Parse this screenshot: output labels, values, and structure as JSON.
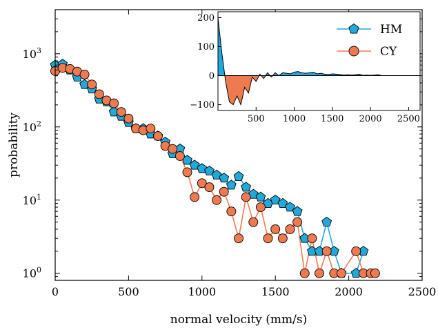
{
  "chart_data": [
    {
      "type": "line",
      "xlabel": "normal velocity (mm/s)",
      "ylabel": "probability",
      "xlim": [
        0,
        2500
      ],
      "ylim": [
        0.8,
        4000
      ],
      "yscale": "log",
      "xticks": [
        {
          "value": 0,
          "label": "0"
        },
        {
          "value": 500,
          "label": "500"
        },
        {
          "value": 1000,
          "label": "1000"
        },
        {
          "value": 1500,
          "label": "1500"
        },
        {
          "value": 2000,
          "label": "2000"
        },
        {
          "value": 2500,
          "label": "2500"
        }
      ],
      "yticks": [
        {
          "value": 1,
          "base": "10",
          "exp": "0"
        },
        {
          "value": 10,
          "base": "10",
          "exp": "1"
        },
        {
          "value": 100,
          "base": "10",
          "exp": "2"
        },
        {
          "value": 1000,
          "base": "10",
          "exp": "3"
        }
      ],
      "grid": false,
      "legend_position": "inset top-right",
      "series": [
        {
          "name": "HM",
          "color": "#1fa9dc",
          "marker": "pentagon",
          "x": [
            0,
            50,
            100,
            150,
            200,
            250,
            300,
            350,
            400,
            450,
            500,
            550,
            600,
            650,
            700,
            750,
            800,
            850,
            900,
            950,
            1000,
            1050,
            1100,
            1150,
            1200,
            1250,
            1300,
            1350,
            1400,
            1450,
            1500,
            1550,
            1600,
            1650,
            1700,
            1750,
            1800,
            1850,
            1900,
            1950,
            2050,
            2100
          ],
          "y": [
            700,
            720,
            600,
            480,
            380,
            330,
            240,
            220,
            160,
            140,
            115,
            95,
            95,
            80,
            75,
            62,
            43,
            50,
            35,
            30,
            27,
            25,
            22,
            20,
            16,
            21,
            15,
            12,
            11,
            9,
            10,
            9,
            8,
            7,
            3,
            2,
            2,
            5,
            2,
            1,
            1,
            2
          ]
        },
        {
          "name": "CY",
          "color": "#f07a4f",
          "marker": "circle",
          "x": [
            0,
            50,
            100,
            150,
            200,
            250,
            300,
            350,
            400,
            450,
            500,
            550,
            600,
            650,
            700,
            750,
            800,
            850,
            900,
            950,
            1000,
            1050,
            1100,
            1150,
            1200,
            1250,
            1300,
            1350,
            1400,
            1450,
            1500,
            1550,
            1600,
            1650,
            1700,
            1750,
            1800,
            1850,
            1900,
            1950,
            2050,
            2100,
            2150,
            2180
          ],
          "y": [
            580,
            640,
            620,
            570,
            520,
            380,
            280,
            230,
            210,
            160,
            130,
            95,
            90,
            95,
            75,
            55,
            50,
            40,
            24,
            11,
            17,
            15,
            10,
            13,
            7,
            3,
            11,
            5,
            8,
            3,
            4,
            3,
            4,
            5,
            1,
            3,
            1,
            2,
            1,
            1,
            2,
            1,
            1,
            1
          ]
        }
      ]
    },
    {
      "type": "area",
      "role": "inset",
      "xlim": [
        0,
        2650
      ],
      "ylim": [
        -120,
        220
      ],
      "xticks": [
        {
          "value": 500,
          "label": "500"
        },
        {
          "value": 1000,
          "label": "1000"
        },
        {
          "value": 1500,
          "label": "1500"
        },
        {
          "value": 2000,
          "label": "2000"
        },
        {
          "value": 2500,
          "label": "2500"
        }
      ],
      "yticks": [
        {
          "value": 200,
          "label": "200"
        },
        {
          "value": 100,
          "label": "100"
        },
        {
          "value": 0,
          "label": "0"
        },
        {
          "value": -100,
          "label": "−100"
        }
      ],
      "positive_color": "#1fa9dc",
      "negative_color": "#f07a4f",
      "x": [
        0,
        50,
        100,
        150,
        200,
        250,
        300,
        350,
        400,
        450,
        500,
        550,
        600,
        650,
        700,
        750,
        800,
        850,
        900,
        950,
        1000,
        1050,
        1100,
        1150,
        1200,
        1250,
        1300,
        1350,
        1400,
        1450,
        1500,
        1550,
        1600,
        1650,
        1700,
        1750,
        1800,
        1850,
        1900,
        1950,
        2000,
        2050,
        2100,
        2150
      ],
      "y": [
        200,
        80,
        -20,
        -90,
        -100,
        -70,
        -100,
        -40,
        -60,
        -5,
        -20,
        5,
        -10,
        10,
        -5,
        10,
        0,
        10,
        8,
        6,
        12,
        14,
        10,
        8,
        10,
        12,
        6,
        8,
        5,
        4,
        6,
        5,
        4,
        2,
        3,
        2,
        3,
        5,
        1,
        2,
        1,
        2,
        3,
        0
      ]
    }
  ]
}
